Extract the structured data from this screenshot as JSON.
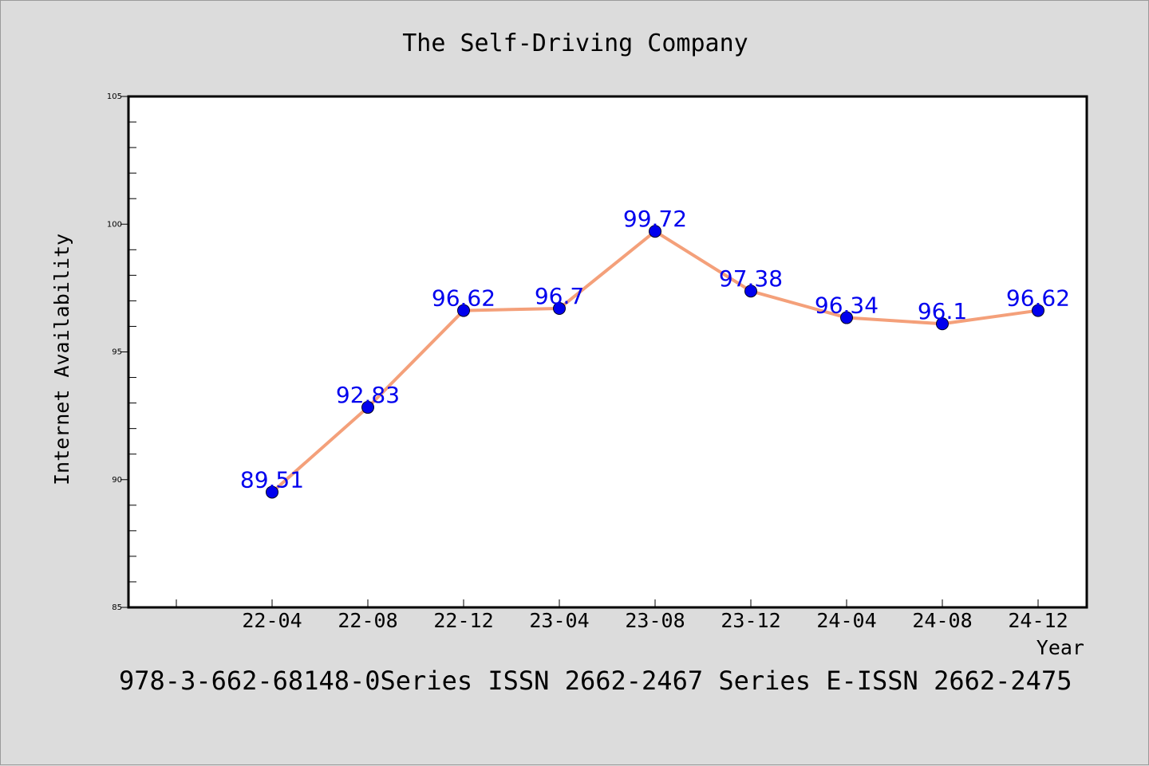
{
  "chart_data": {
    "type": "line",
    "title": "The Self-Driving Company",
    "xlabel": "Year",
    "ylabel": "Internet Availability",
    "footer": "978-3-662-68148-0Series ISSN 2662-2467 Series E-ISSN 2662-2475",
    "categories": [
      "22-04",
      "22-08",
      "22-12",
      "23-04",
      "23-08",
      "23-12",
      "24-04",
      "24-08",
      "24-12"
    ],
    "series": [
      {
        "values": [
          89.51,
          92.83,
          96.62,
          96.7,
          99.72,
          97.38,
          96.34,
          96.1,
          96.62
        ],
        "line_color": "#f4a07a",
        "marker_color": "#0000ee"
      }
    ],
    "ylim": [
      85,
      105
    ],
    "yticks": [
      85,
      90,
      95,
      100,
      105
    ],
    "ytick_labels": [
      "85",
      "90",
      "95",
      "100",
      "105"
    ],
    "grid": false,
    "data_label_color": "#0000ee"
  }
}
